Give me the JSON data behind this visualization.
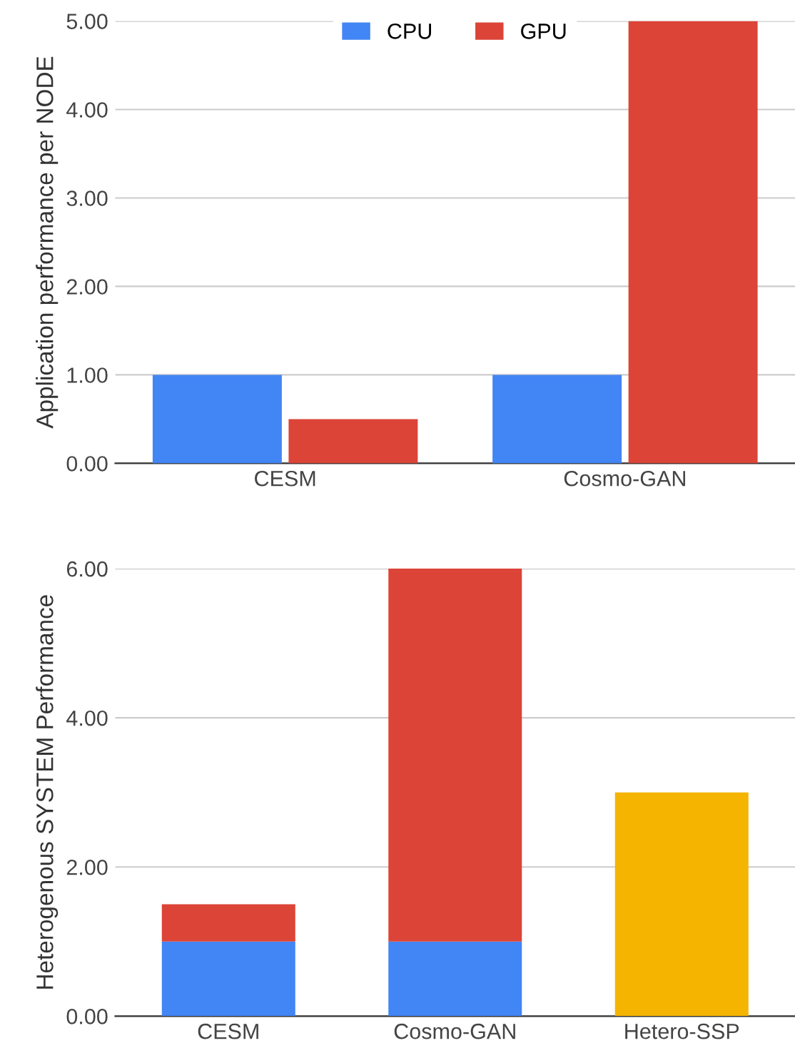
{
  "chart_data": [
    {
      "type": "bar",
      "ylabel": "Application performance per NODE",
      "categories": [
        "CESM",
        "Cosmo-GAN"
      ],
      "series": [
        {
          "name": "CPU",
          "color": "#4285f4",
          "values": [
            1.0,
            1.0
          ]
        },
        {
          "name": "GPU",
          "color": "#db4437",
          "values": [
            0.5,
            5.0
          ]
        }
      ],
      "ylim": [
        0,
        5
      ],
      "yticks": [
        {
          "value": 0,
          "label": "0.00"
        },
        {
          "value": 1,
          "label": "1.00"
        },
        {
          "value": 2,
          "label": "2.00"
        },
        {
          "value": 3,
          "label": "3.00"
        },
        {
          "value": 4,
          "label": "4.00"
        },
        {
          "value": 5,
          "label": "5.00"
        }
      ],
      "grid": "y",
      "legend": "top"
    },
    {
      "type": "bar",
      "stacked": true,
      "ylabel": "Heterogenous SYSTEM Performance",
      "categories": [
        "CESM",
        "Cosmo-GAN",
        "Hetero-SSP"
      ],
      "series": [
        {
          "color": "#4285f4",
          "values": [
            1.0,
            1.0,
            null
          ]
        },
        {
          "color": "#db4437",
          "values": [
            0.5,
            5.0,
            null
          ]
        },
        {
          "color": "#f4b400",
          "values": [
            null,
            null,
            3.0
          ]
        }
      ],
      "ylim": [
        0,
        6
      ],
      "yticks": [
        {
          "value": 0,
          "label": "0.00"
        },
        {
          "value": 2,
          "label": "2.00"
        },
        {
          "value": 4,
          "label": "4.00"
        },
        {
          "value": 6,
          "label": "6.00"
        }
      ],
      "grid": "y"
    }
  ]
}
